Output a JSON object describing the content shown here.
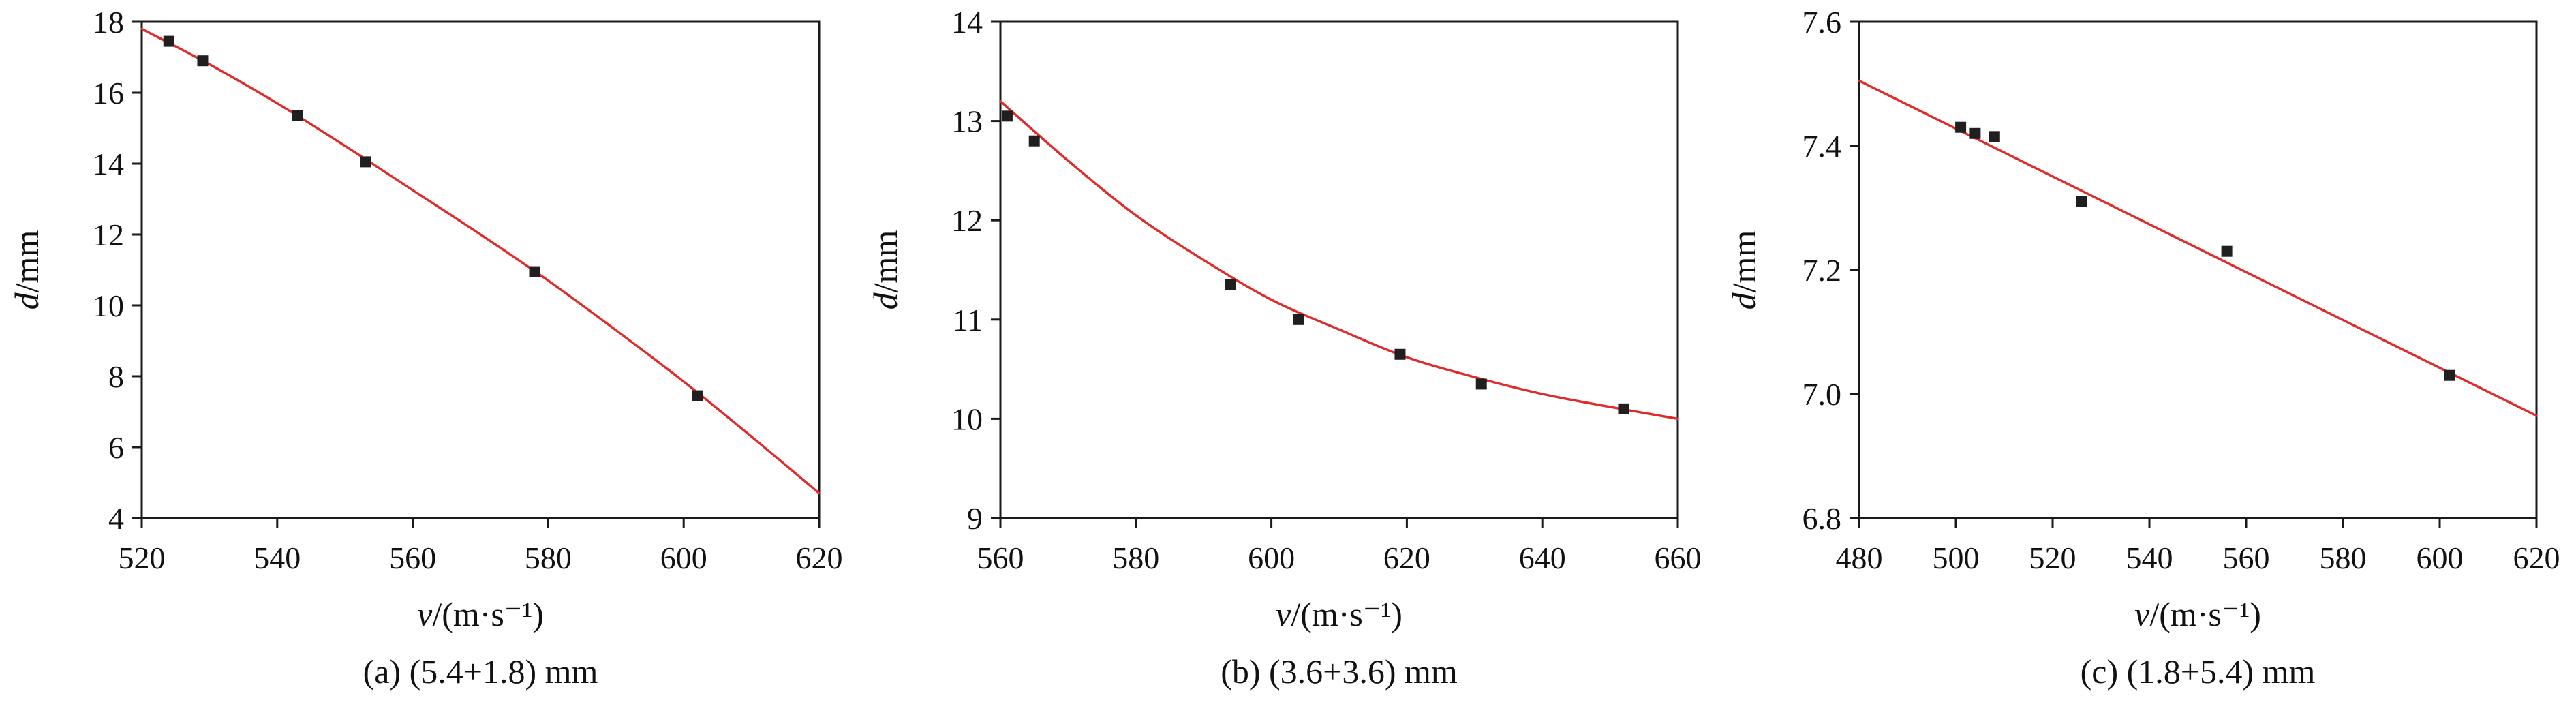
{
  "style": {
    "axis_color": "#1a1a1a",
    "background": "#ffffff",
    "fit_line_color": "#e02b2b",
    "marker_color": "#1f1f1f"
  },
  "chart_data": [
    {
      "type": "scatter",
      "caption": "(a) (5.4+1.8) mm",
      "xlabel": "v/(m·s⁻¹)",
      "ylabel": "d/mm",
      "xlim": [
        520,
        620
      ],
      "ylim": [
        4,
        18
      ],
      "xticks": [
        520,
        540,
        560,
        580,
        600,
        620
      ],
      "xtick_labels": [
        "520",
        "540",
        "560",
        "580",
        "600",
        "620"
      ],
      "yticks": [
        4,
        6,
        8,
        10,
        12,
        14,
        16,
        18
      ],
      "ytick_labels": [
        "4",
        "6",
        "8",
        "10",
        "12",
        "14",
        "16",
        "18"
      ],
      "grid": false,
      "legend": "none",
      "series": [
        {
          "name": "fit-curve",
          "kind": "line",
          "color": "#e02b2b",
          "points": [
            [
              520,
              17.8
            ],
            [
              530,
              16.8
            ],
            [
              540,
              15.7
            ],
            [
              550,
              14.5
            ],
            [
              560,
              13.25
            ],
            [
              570,
              12.0
            ],
            [
              580,
              10.7
            ],
            [
              590,
              9.3
            ],
            [
              600,
              7.85
            ],
            [
              610,
              6.3
            ],
            [
              620,
              4.7
            ]
          ]
        },
        {
          "name": "measured-points",
          "kind": "scatter",
          "marker": "square",
          "color": "#1f1f1f",
          "points": [
            [
              524,
              17.45
            ],
            [
              529,
              16.9
            ],
            [
              543,
              15.35
            ],
            [
              553,
              14.05
            ],
            [
              578,
              10.95
            ],
            [
              602,
              7.45
            ]
          ]
        }
      ]
    },
    {
      "type": "scatter",
      "caption": "(b) (3.6+3.6) mm",
      "xlabel": "v/(m·s⁻¹)",
      "ylabel": "d/mm",
      "xlim": [
        560,
        660
      ],
      "ylim": [
        9,
        14
      ],
      "xticks": [
        560,
        580,
        600,
        620,
        640,
        660
      ],
      "xtick_labels": [
        "560",
        "580",
        "600",
        "620",
        "640",
        "660"
      ],
      "yticks": [
        9,
        10,
        11,
        12,
        13,
        14
      ],
      "ytick_labels": [
        "9",
        "10",
        "11",
        "12",
        "13",
        "14"
      ],
      "grid": false,
      "legend": "none",
      "series": [
        {
          "name": "fit-curve",
          "kind": "line",
          "color": "#e02b2b",
          "points": [
            [
              560,
              13.2
            ],
            [
              570,
              12.6
            ],
            [
              580,
              12.05
            ],
            [
              590,
              11.6
            ],
            [
              600,
              11.2
            ],
            [
              610,
              10.9
            ],
            [
              620,
              10.62
            ],
            [
              630,
              10.42
            ],
            [
              640,
              10.25
            ],
            [
              650,
              10.12
            ],
            [
              660,
              10.0
            ]
          ]
        },
        {
          "name": "measured-points",
          "kind": "scatter",
          "marker": "square",
          "color": "#1f1f1f",
          "points": [
            [
              561,
              13.05
            ],
            [
              565,
              12.8
            ],
            [
              594,
              11.35
            ],
            [
              604,
              11.0
            ],
            [
              619,
              10.65
            ],
            [
              631,
              10.35
            ],
            [
              652,
              10.1
            ]
          ]
        }
      ]
    },
    {
      "type": "scatter",
      "caption": "(c) (1.8+5.4) mm",
      "xlabel": "v/(m·s⁻¹)",
      "ylabel": "d/mm",
      "xlim": [
        480,
        620
      ],
      "ylim": [
        6.8,
        7.6
      ],
      "xticks": [
        480,
        500,
        520,
        540,
        560,
        580,
        600,
        620
      ],
      "xtick_labels": [
        "480",
        "500",
        "520",
        "540",
        "560",
        "580",
        "600",
        "620"
      ],
      "yticks": [
        6.8,
        7.0,
        7.2,
        7.4,
        7.6
      ],
      "ytick_labels": [
        "6.8",
        "7.0",
        "7.2",
        "7.4",
        "7.6"
      ],
      "grid": false,
      "legend": "none",
      "series": [
        {
          "name": "fit-curve",
          "kind": "line",
          "color": "#e02b2b",
          "points": [
            [
              480,
              7.505
            ],
            [
              620,
              6.965
            ]
          ]
        },
        {
          "name": "measured-points",
          "kind": "scatter",
          "marker": "square",
          "color": "#1f1f1f",
          "points": [
            [
              501,
              7.43
            ],
            [
              504,
              7.42
            ],
            [
              508,
              7.415
            ],
            [
              526,
              7.31
            ],
            [
              556,
              7.23
            ],
            [
              602,
              7.03
            ]
          ]
        }
      ]
    }
  ]
}
